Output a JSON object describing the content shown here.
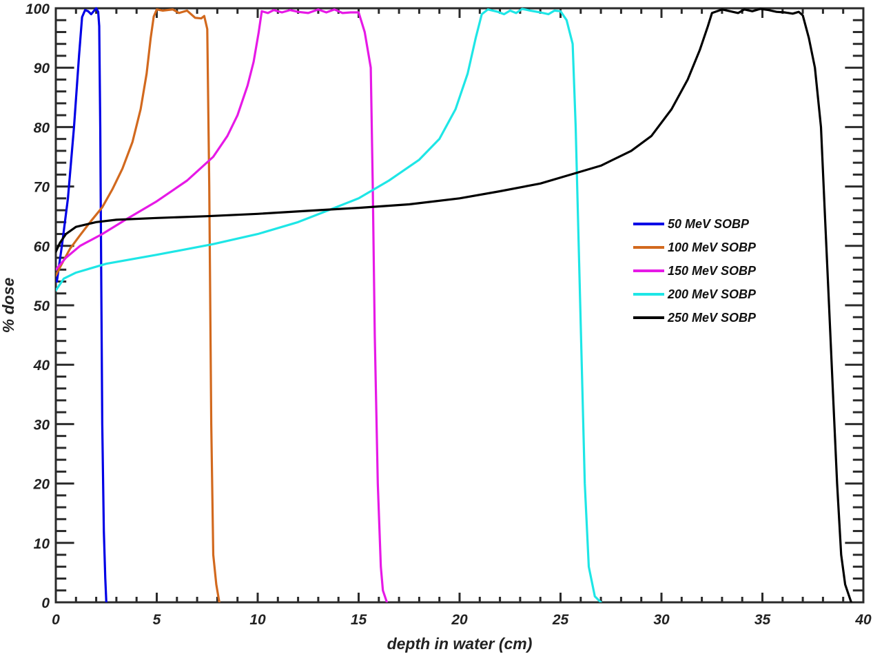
{
  "chart_data": {
    "type": "line",
    "title": "",
    "xlabel": "depth in water (cm)",
    "ylabel": "% dose",
    "xlim": [
      0,
      40
    ],
    "ylim": [
      0,
      100
    ],
    "x_ticks": [
      0,
      5,
      10,
      15,
      20,
      25,
      30,
      35,
      40
    ],
    "x_tick_labels": [
      "0",
      "5",
      "10",
      "15",
      "20",
      "25",
      "30",
      "35",
      "40"
    ],
    "x_minor_step": 1,
    "y_ticks": [
      0,
      10,
      20,
      30,
      40,
      50,
      60,
      70,
      80,
      90,
      100
    ],
    "y_tick_labels": [
      "0",
      "10",
      "20",
      "30",
      "40",
      "50",
      "60",
      "70",
      "80",
      "90",
      "100"
    ],
    "y_minor_step": 2,
    "grid": false,
    "legend_position": "center-right",
    "series": [
      {
        "name": "50 MeV SOBP",
        "color": "#0000e6",
        "points": [
          [
            0.05,
            54
          ],
          [
            0.3,
            60
          ],
          [
            0.6,
            68
          ],
          [
            0.9,
            80
          ],
          [
            1.15,
            92
          ],
          [
            1.3,
            98.5
          ],
          [
            1.45,
            99.7
          ],
          [
            1.6,
            99.5
          ],
          [
            1.75,
            99.0
          ],
          [
            1.9,
            99.6
          ],
          [
            2.0,
            100
          ],
          [
            2.1,
            99.4
          ],
          [
            2.15,
            97
          ],
          [
            2.2,
            80
          ],
          [
            2.25,
            55
          ],
          [
            2.3,
            30
          ],
          [
            2.38,
            12
          ],
          [
            2.45,
            4
          ],
          [
            2.5,
            0
          ]
        ]
      },
      {
        "name": "100 MeV SOBP",
        "color": "#d2691e",
        "points": [
          [
            0,
            55
          ],
          [
            0.3,
            57
          ],
          [
            0.7,
            59.5
          ],
          [
            1.2,
            61.8
          ],
          [
            1.7,
            64
          ],
          [
            2.3,
            66.5
          ],
          [
            2.8,
            69.5
          ],
          [
            3.3,
            73
          ],
          [
            3.8,
            77.5
          ],
          [
            4.2,
            83
          ],
          [
            4.5,
            89
          ],
          [
            4.7,
            95
          ],
          [
            4.85,
            98.6
          ],
          [
            5.0,
            99.8
          ],
          [
            5.3,
            99.6
          ],
          [
            5.8,
            99.8
          ],
          [
            6.1,
            99.2
          ],
          [
            6.5,
            99.6
          ],
          [
            6.9,
            98.4
          ],
          [
            7.2,
            98.3
          ],
          [
            7.35,
            98.7
          ],
          [
            7.5,
            96.5
          ],
          [
            7.6,
            70
          ],
          [
            7.7,
            30
          ],
          [
            7.8,
            8
          ],
          [
            7.95,
            3
          ],
          [
            8.1,
            0
          ]
        ]
      },
      {
        "name": "150 MeV SOBP",
        "color": "#e619e6",
        "points": [
          [
            0,
            56
          ],
          [
            0.5,
            58
          ],
          [
            1.2,
            60
          ],
          [
            2.3,
            62
          ],
          [
            3.5,
            64.5
          ],
          [
            5,
            67.5
          ],
          [
            6.5,
            71
          ],
          [
            7.8,
            75
          ],
          [
            8.5,
            78.5
          ],
          [
            9.0,
            82
          ],
          [
            9.5,
            87
          ],
          [
            9.8,
            91
          ],
          [
            10.05,
            96
          ],
          [
            10.2,
            99.5
          ],
          [
            10.5,
            99.2
          ],
          [
            10.8,
            99.7
          ],
          [
            11.2,
            99.3
          ],
          [
            11.6,
            99.7
          ],
          [
            12.0,
            99.4
          ],
          [
            12.5,
            99.2
          ],
          [
            13.0,
            99.8
          ],
          [
            13.4,
            99.3
          ],
          [
            13.8,
            99.8
          ],
          [
            14.2,
            99.2
          ],
          [
            14.6,
            99.3
          ],
          [
            15.0,
            99.3
          ],
          [
            15.3,
            96
          ],
          [
            15.6,
            90
          ],
          [
            15.7,
            70
          ],
          [
            15.8,
            45
          ],
          [
            15.95,
            20
          ],
          [
            16.1,
            6
          ],
          [
            16.2,
            2
          ],
          [
            16.4,
            0
          ]
        ]
      },
      {
        "name": "200 MeV SOBP",
        "color": "#1ee6e6",
        "points": [
          [
            0,
            52.5
          ],
          [
            0.4,
            54.5
          ],
          [
            1.0,
            55.5
          ],
          [
            2.5,
            57
          ],
          [
            5,
            58.5
          ],
          [
            7.8,
            60.3
          ],
          [
            10,
            62
          ],
          [
            12,
            64
          ],
          [
            13.5,
            66
          ],
          [
            15,
            68
          ],
          [
            16.5,
            71
          ],
          [
            18,
            74.5
          ],
          [
            19,
            78
          ],
          [
            19.8,
            83
          ],
          [
            20.4,
            89
          ],
          [
            20.8,
            95
          ],
          [
            21.1,
            99
          ],
          [
            21.4,
            99.8
          ],
          [
            21.9,
            99.4
          ],
          [
            22.2,
            99.0
          ],
          [
            22.5,
            99.6
          ],
          [
            22.8,
            99.2
          ],
          [
            23.1,
            99.9
          ],
          [
            23.5,
            99.6
          ],
          [
            24.0,
            99.3
          ],
          [
            24.4,
            99.0
          ],
          [
            24.7,
            99.6
          ],
          [
            25.0,
            99.5
          ],
          [
            25.3,
            98
          ],
          [
            25.6,
            94
          ],
          [
            25.75,
            80
          ],
          [
            25.9,
            60
          ],
          [
            26.05,
            40
          ],
          [
            26.2,
            20
          ],
          [
            26.4,
            6
          ],
          [
            26.7,
            1
          ],
          [
            27.0,
            0
          ]
        ]
      },
      {
        "name": "250 MeV SOBP",
        "color": "#000000",
        "points": [
          [
            0,
            59
          ],
          [
            0.2,
            60.5
          ],
          [
            0.5,
            62
          ],
          [
            1.0,
            63.2
          ],
          [
            2,
            64
          ],
          [
            3,
            64.4
          ],
          [
            5,
            64.7
          ],
          [
            7.5,
            65
          ],
          [
            10,
            65.4
          ],
          [
            12.5,
            65.9
          ],
          [
            15,
            66.4
          ],
          [
            17.5,
            67
          ],
          [
            20,
            68
          ],
          [
            22,
            69.2
          ],
          [
            24,
            70.5
          ],
          [
            25.5,
            72
          ],
          [
            27,
            73.5
          ],
          [
            28.5,
            76
          ],
          [
            29.5,
            78.5
          ],
          [
            30.5,
            83
          ],
          [
            31.3,
            88
          ],
          [
            31.9,
            93
          ],
          [
            32.3,
            97
          ],
          [
            32.5,
            99.2
          ],
          [
            33.0,
            99.8
          ],
          [
            33.4,
            99.5
          ],
          [
            33.8,
            99.2
          ],
          [
            34.1,
            99.8
          ],
          [
            34.5,
            99.5
          ],
          [
            34.9,
            99.9
          ],
          [
            35.3,
            99.7
          ],
          [
            35.7,
            99.4
          ],
          [
            36.1,
            99.3
          ],
          [
            36.5,
            99.1
          ],
          [
            36.8,
            99.4
          ],
          [
            37.0,
            98.8
          ],
          [
            37.3,
            95
          ],
          [
            37.6,
            90
          ],
          [
            37.9,
            80
          ],
          [
            38.1,
            65
          ],
          [
            38.3,
            50
          ],
          [
            38.5,
            35
          ],
          [
            38.7,
            20
          ],
          [
            38.9,
            8
          ],
          [
            39.1,
            3
          ],
          [
            39.4,
            0
          ]
        ]
      }
    ]
  },
  "axes": {
    "xlabel": "depth in water (cm)",
    "ylabel": "% dose"
  },
  "legend": {
    "items": [
      {
        "label": "50 MeV SOBP",
        "color": "#0000e6"
      },
      {
        "label": "100 MeV SOBP",
        "color": "#d2691e"
      },
      {
        "label": "150 MeV SOBP",
        "color": "#e619e6"
      },
      {
        "label": "200 MeV SOBP",
        "color": "#1ee6e6"
      },
      {
        "label": "250 MeV SOBP",
        "color": "#000000"
      }
    ]
  }
}
